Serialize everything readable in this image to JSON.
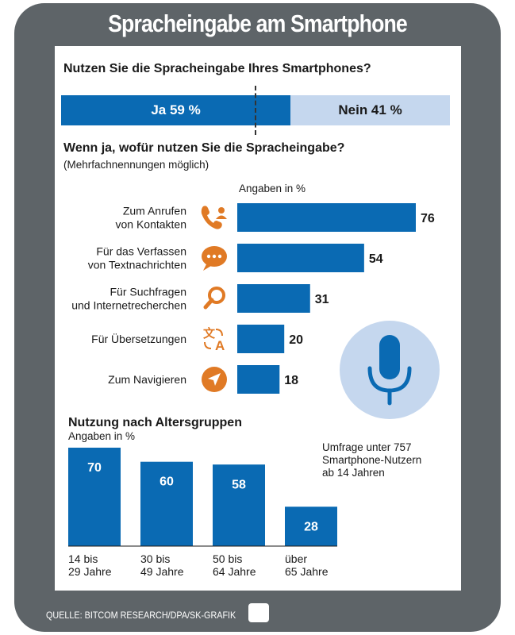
{
  "title": "Spracheingabe am Smartphone",
  "question1": "Nutzen Sie die Spracheingabe Ihres Smartphones?",
  "split": {
    "yes_label": "Ja 59 %",
    "no_label": "Nein 41 %",
    "yes_value": 59,
    "no_value": 41,
    "yes_color": "#0a6ab3",
    "no_color": "#c5d7ee"
  },
  "question2": "Wenn ja, wofür nutzen Sie die Spracheingabe?",
  "question2_note": "(Mehrfachnennungen möglich)",
  "usage_unit": "Angaben in %",
  "age_title": "Nutzung nach Altersgruppen",
  "age_unit": "Angaben in %",
  "survey_note": [
    "Umfrage unter 757",
    "Smartphone-Nutzern",
    "ab 14 Jahren"
  ],
  "source": "QUELLE: BITCOM RESEARCH/DPA/SK-GRAFIK",
  "colors": {
    "frame": "#5e6468",
    "bar": "#0a6ab3",
    "icon": "#e07a25",
    "mic_circle": "#c5d7ee"
  },
  "chart_data": [
    {
      "type": "bar",
      "orientation": "horizontal",
      "categories": [
        [
          "Zum Anrufen",
          "von Kontakten"
        ],
        [
          "Für das Verfassen",
          "von Textnachrichten"
        ],
        [
          "Für Suchfragen",
          "und Internetrecherchen"
        ],
        [
          "Für Übersetzungen"
        ],
        [
          "Zum Navigieren"
        ]
      ],
      "icons": [
        "phone-contact-icon",
        "chat-bubble-icon",
        "search-icon",
        "translate-icon",
        "navigation-icon"
      ],
      "values": [
        76,
        54,
        31,
        20,
        18
      ],
      "xlim": [
        0,
        76
      ]
    },
    {
      "type": "bar",
      "orientation": "vertical",
      "title": "Nutzung nach Altersgruppen",
      "categories": [
        [
          "14 bis",
          "29 Jahre"
        ],
        [
          "30 bis",
          "49 Jahre"
        ],
        [
          "50 bis",
          "64 Jahre"
        ],
        [
          "über",
          "65 Jahre"
        ]
      ],
      "values": [
        70,
        60,
        58,
        28
      ],
      "ylim": [
        0,
        70
      ]
    }
  ]
}
